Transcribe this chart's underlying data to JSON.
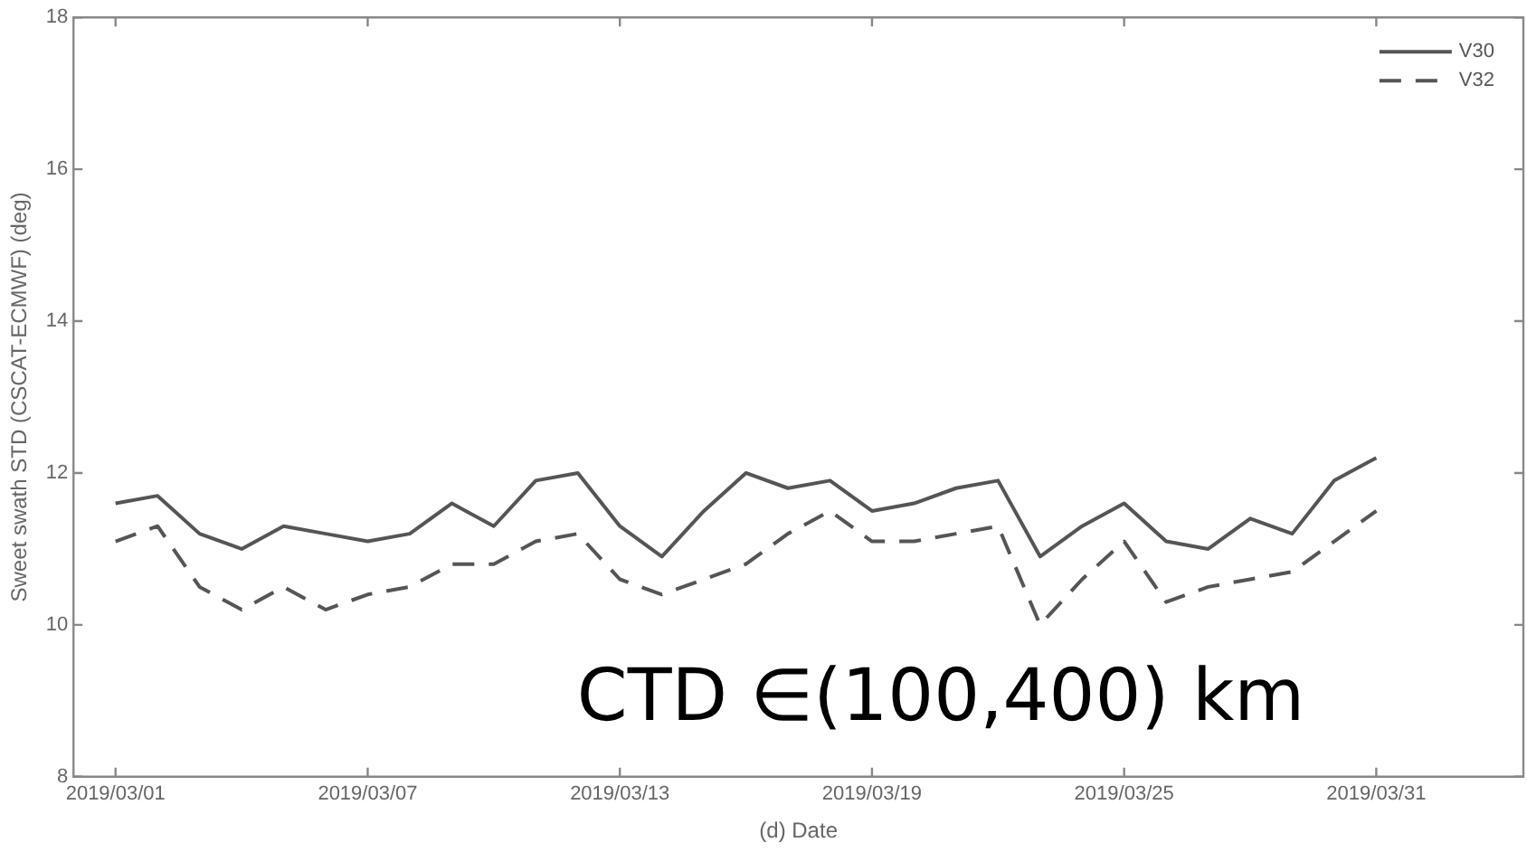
{
  "chart_data": {
    "type": "line",
    "xlabel": "(d) Date",
    "ylabel": "Sweet swath STD (CSCAT-ECMWF) (deg)",
    "x": [
      "2019-03-01",
      "2019-03-02",
      "2019-03-03",
      "2019-03-04",
      "2019-03-05",
      "2019-03-06",
      "2019-03-07",
      "2019-03-08",
      "2019-03-09",
      "2019-03-10",
      "2019-03-11",
      "2019-03-12",
      "2019-03-13",
      "2019-03-14",
      "2019-03-15",
      "2019-03-16",
      "2019-03-17",
      "2019-03-18",
      "2019-03-19",
      "2019-03-20",
      "2019-03-21",
      "2019-03-22",
      "2019-03-23",
      "2019-03-24",
      "2019-03-25",
      "2019-03-26",
      "2019-03-27",
      "2019-03-28",
      "2019-03-29",
      "2019-03-30",
      "2019-03-31"
    ],
    "series": [
      {
        "name": "V30",
        "color": "#555555",
        "line_style": "solid",
        "values": [
          11.6,
          11.7,
          11.2,
          11.0,
          11.3,
          11.2,
          11.1,
          11.2,
          11.6,
          11.3,
          11.9,
          12.0,
          11.3,
          10.9,
          11.5,
          12.0,
          11.8,
          11.9,
          11.5,
          11.6,
          11.8,
          11.9,
          10.9,
          11.3,
          11.6,
          11.1,
          11.0,
          11.4,
          11.2,
          11.9,
          12.2
        ]
      },
      {
        "name": "V32",
        "color": "#555555",
        "line_style": "dashed",
        "values": [
          11.1,
          11.3,
          10.5,
          10.2,
          10.5,
          10.2,
          10.4,
          10.5,
          10.8,
          10.8,
          11.1,
          11.2,
          10.6,
          10.4,
          10.6,
          10.8,
          11.2,
          11.5,
          11.1,
          11.1,
          11.2,
          11.3,
          10.0,
          10.6,
          11.1,
          10.3,
          10.5,
          10.6,
          10.7,
          11.1,
          11.5
        ]
      }
    ],
    "xlim": [
      "2019-02-28",
      "2019-04-03T12:00"
    ],
    "xticks": [
      {
        "value": "2019-03-01",
        "label": "2019/03/01"
      },
      {
        "value": "2019-03-07",
        "label": "2019/03/07"
      },
      {
        "value": "2019-03-13",
        "label": "2019/03/13"
      },
      {
        "value": "2019-03-19",
        "label": "2019/03/19"
      },
      {
        "value": "2019-03-25",
        "label": "2019/03/25"
      },
      {
        "value": "2019-03-31",
        "label": "2019/03/31"
      }
    ],
    "ylim": [
      8,
      18
    ],
    "yticks": [
      8,
      10,
      12,
      14,
      16,
      18
    ],
    "legend": "top right",
    "marker": "none",
    "grid": false,
    "annotations": [
      "CTD ∈(100,400) km"
    ]
  }
}
